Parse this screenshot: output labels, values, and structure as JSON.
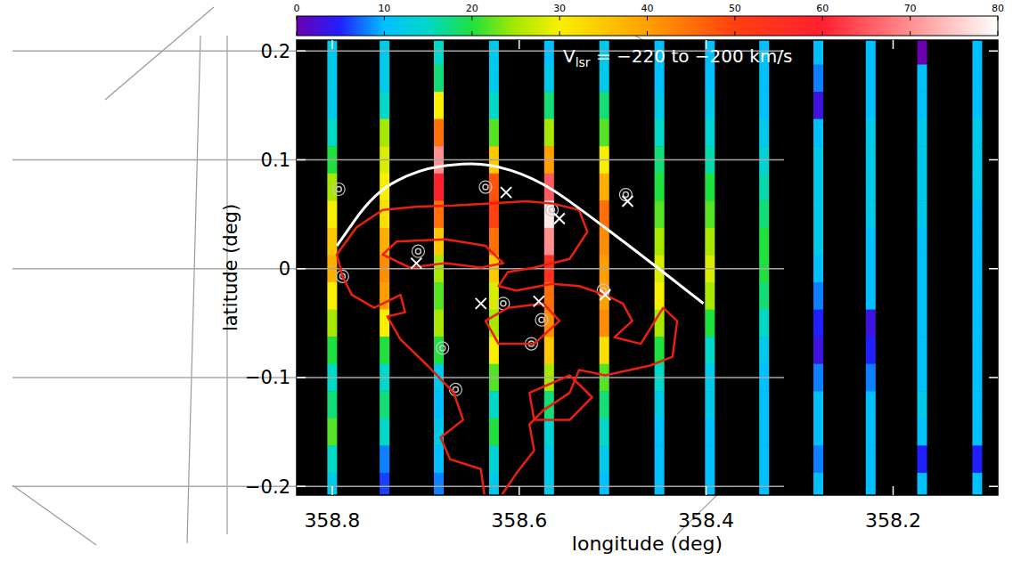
{
  "chart_data": {
    "type": "heatmap_strips",
    "xlabel": "longitude (deg)",
    "ylabel": "latitude (deg)",
    "annotation": {
      "symbol": "V",
      "subscript": "lsr",
      "text": " = −220 to −200 km/s"
    },
    "xlim": [
      358.838,
      358.088
    ],
    "ylim": [
      -0.208,
      0.21
    ],
    "xticks": [
      358.8,
      358.6,
      358.4,
      358.2
    ],
    "yticks": [
      0.2,
      0.1,
      0,
      {
        "value": -0.1,
        "label": "−0.1"
      },
      {
        "value": -0.2,
        "label": "−0.2"
      }
    ],
    "grid": true,
    "colorbar": {
      "range": [
        0,
        80
      ],
      "ticks": [
        0,
        10,
        20,
        30,
        40,
        50,
        60,
        70,
        80
      ]
    },
    "latitudes": [
      0.2,
      0.175,
      0.15,
      0.125,
      0.1,
      0.075,
      0.05,
      0.025,
      0,
      -0.025,
      -0.05,
      -0.075,
      -0.1,
      -0.125,
      -0.15,
      -0.175,
      -0.2
    ],
    "strips": [
      {
        "longitude": 358.8,
        "values": [
          12,
          12,
          12,
          15,
          20,
          25,
          30,
          35,
          38,
          30,
          25,
          20,
          15,
          18,
          22,
          15,
          12
        ]
      },
      {
        "longitude": 358.744,
        "values": [
          12,
          12,
          15,
          25,
          28,
          30,
          32,
          38,
          42,
          40,
          30,
          20,
          15,
          18,
          15,
          8,
          6
        ]
      },
      {
        "longitude": 358.686,
        "values": [
          15,
          18,
          30,
          45,
          70,
          60,
          45,
          35,
          25,
          22,
          25,
          20,
          12,
          10,
          12,
          10,
          8
        ]
      },
      {
        "longitude": 358.627,
        "values": [
          12,
          12,
          15,
          22,
          35,
          48,
          50,
          45,
          35,
          28,
          25,
          30,
          22,
          15,
          20,
          14,
          12
        ]
      },
      {
        "longitude": 358.568,
        "values": [
          10,
          12,
          18,
          25,
          40,
          65,
          78,
          70,
          55,
          45,
          42,
          35,
          25,
          18,
          14,
          12,
          12
        ]
      },
      {
        "longitude": 358.509,
        "values": [
          12,
          12,
          18,
          22,
          30,
          38,
          45,
          42,
          40,
          40,
          42,
          32,
          22,
          18,
          15,
          12,
          10
        ]
      },
      {
        "longitude": 358.45,
        "values": [
          10,
          10,
          12,
          15,
          18,
          20,
          22,
          25,
          28,
          30,
          25,
          20,
          15,
          12,
          10,
          10,
          10
        ]
      },
      {
        "longitude": 358.396,
        "values": [
          10,
          10,
          12,
          14,
          16,
          20,
          22,
          25,
          28,
          25,
          20,
          15,
          12,
          12,
          10,
          10,
          10
        ]
      },
      {
        "longitude": 358.338,
        "values": [
          10,
          10,
          10,
          12,
          14,
          16,
          18,
          20,
          20,
          18,
          15,
          12,
          10,
          10,
          10,
          10,
          10
        ]
      },
      {
        "longitude": 358.28,
        "values": [
          10,
          8,
          3,
          10,
          12,
          12,
          12,
          12,
          10,
          8,
          5,
          3,
          8,
          10,
          10,
          8,
          10
        ]
      },
      {
        "longitude": 358.224,
        "values": [
          10,
          10,
          10,
          12,
          12,
          12,
          12,
          10,
          10,
          10,
          3,
          5,
          8,
          10,
          10,
          10,
          10
        ]
      },
      {
        "longitude": 358.169,
        "values": [
          0,
          10,
          10,
          12,
          12,
          12,
          12,
          10,
          10,
          10,
          10,
          10,
          10,
          12,
          10,
          5,
          10
        ]
      },
      {
        "longitude": 358.11,
        "values": [
          10,
          10,
          10,
          12,
          12,
          12,
          10,
          10,
          10,
          10,
          10,
          10,
          10,
          10,
          10,
          5,
          10
        ]
      }
    ],
    "contours": [
      {
        "color": "#e8200c",
        "points": [
          [
            358.795,
            0.013
          ],
          [
            358.774,
            0.038
          ],
          [
            358.746,
            0.054
          ],
          [
            358.708,
            0.057
          ],
          [
            358.67,
            0.058
          ],
          [
            358.631,
            0.06
          ],
          [
            358.593,
            0.062
          ],
          [
            358.565,
            0.06
          ],
          [
            358.536,
            0.054
          ],
          [
            358.527,
            0.034
          ],
          [
            358.546,
            0.009
          ],
          [
            358.584,
            0.001
          ],
          [
            358.612,
            -0.003
          ],
          [
            358.622,
            -0.016
          ],
          [
            358.603,
            -0.02
          ],
          [
            358.565,
            -0.014
          ],
          [
            358.536,
            -0.016
          ],
          [
            358.508,
            -0.024
          ],
          [
            358.489,
            -0.032
          ],
          [
            358.479,
            -0.048
          ],
          [
            358.498,
            -0.063
          ],
          [
            358.47,
            -0.069
          ],
          [
            358.446,
            -0.036
          ],
          [
            358.431,
            -0.048
          ],
          [
            358.436,
            -0.081
          ],
          [
            358.46,
            -0.089
          ],
          [
            358.508,
            -0.098
          ],
          [
            358.536,
            -0.093
          ],
          [
            358.546,
            -0.114
          ],
          [
            358.574,
            -0.13
          ],
          [
            358.589,
            -0.143
          ],
          [
            358.584,
            -0.167
          ],
          [
            358.603,
            -0.188
          ],
          [
            358.622,
            -0.212
          ],
          [
            358.636,
            -0.216
          ],
          [
            358.641,
            -0.184
          ],
          [
            358.674,
            -0.175
          ],
          [
            358.684,
            -0.155
          ],
          [
            358.66,
            -0.139
          ],
          [
            358.67,
            -0.114
          ],
          [
            358.698,
            -0.089
          ],
          [
            358.727,
            -0.065
          ],
          [
            358.741,
            -0.044
          ],
          [
            358.722,
            -0.04
          ],
          [
            358.727,
            -0.024
          ],
          [
            358.755,
            -0.036
          ],
          [
            358.779,
            -0.024
          ],
          [
            358.789,
            -0.007
          ]
        ]
      },
      {
        "color": "#e8200c",
        "points": [
          [
            358.746,
            0.013
          ],
          [
            358.731,
            0.025
          ],
          [
            358.679,
            0.027
          ],
          [
            358.636,
            0.021
          ],
          [
            358.617,
            0.005
          ],
          [
            358.641,
            0.001
          ],
          [
            358.679,
            0.005
          ],
          [
            358.717,
            0.001
          ]
        ]
      },
      {
        "color": "#e8200c",
        "points": [
          [
            358.636,
            -0.048
          ],
          [
            358.612,
            -0.036
          ],
          [
            358.574,
            -0.032
          ],
          [
            358.557,
            -0.048
          ],
          [
            358.584,
            -0.069
          ],
          [
            358.622,
            -0.069
          ]
        ]
      },
      {
        "color": "#e8200c",
        "points": [
          [
            358.589,
            -0.114
          ],
          [
            358.546,
            -0.098
          ],
          [
            358.522,
            -0.118
          ],
          [
            358.546,
            -0.139
          ],
          [
            358.584,
            -0.139
          ]
        ]
      }
    ],
    "curve": {
      "color": "#ffffff",
      "points": [
        [
          358.795,
          0.021
        ],
        [
          358.755,
          0.07
        ],
        [
          358.708,
          0.091
        ],
        [
          358.66,
          0.097
        ],
        [
          358.622,
          0.095
        ],
        [
          358.574,
          0.079
        ],
        [
          358.527,
          0.05
        ],
        [
          358.47,
          0.013
        ],
        [
          358.403,
          -0.032
        ]
      ]
    },
    "markers": {
      "color": "#ffffff",
      "marker": "x",
      "points": [
        [
          358.71,
          0.005
        ],
        [
          358.557,
          0.046
        ],
        [
          358.641,
          -0.032
        ],
        [
          358.579,
          -0.03
        ],
        [
          358.508,
          -0.024
        ],
        [
          358.614,
          0.07
        ],
        [
          358.484,
          0.062
        ]
      ]
    },
    "sources": {
      "color": "#c8c8c8",
      "marker": "circle",
      "points": [
        [
          358.793,
          0.073
        ],
        [
          358.789,
          -0.007
        ],
        [
          358.708,
          0.016
        ],
        [
          358.617,
          -0.032
        ],
        [
          358.576,
          -0.047
        ],
        [
          358.587,
          -0.069
        ],
        [
          358.682,
          -0.073
        ],
        [
          358.668,
          -0.111
        ],
        [
          358.636,
          0.075
        ],
        [
          358.486,
          0.068
        ],
        [
          358.51,
          -0.02
        ],
        [
          358.565,
          0.054
        ]
      ]
    }
  }
}
